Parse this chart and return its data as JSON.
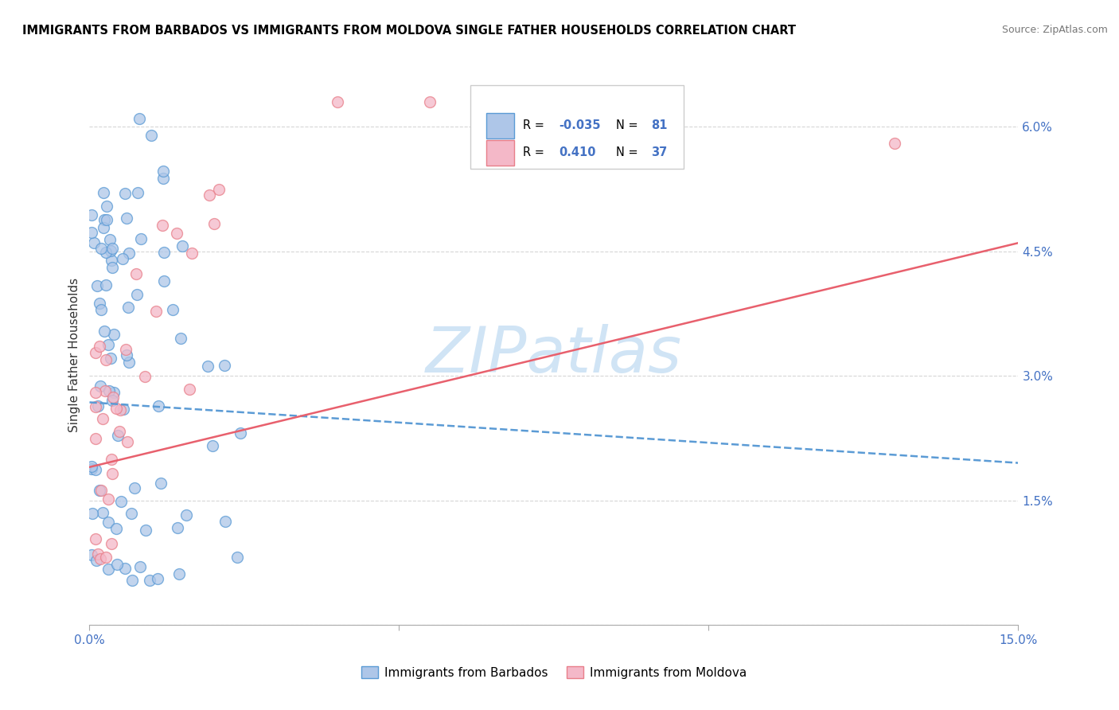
{
  "title": "IMMIGRANTS FROM BARBADOS VS IMMIGRANTS FROM MOLDOVA SINGLE FATHER HOUSEHOLDS CORRELATION CHART",
  "source": "Source: ZipAtlas.com",
  "ylabel": "Single Father Households",
  "x_min": 0.0,
  "x_max": 0.15,
  "y_min": 0.0,
  "y_max": 0.065,
  "barbados_color": "#aec6e8",
  "moldova_color": "#f4b8c8",
  "barbados_edge_color": "#5b9bd5",
  "moldova_edge_color": "#e87f8a",
  "barbados_line_color": "#5b9bd5",
  "moldova_line_color": "#e8606d",
  "watermark_color": "#d0e4f5",
  "legend_r_barbados": "-0.035",
  "legend_n_barbados": "81",
  "legend_r_moldova": "0.410",
  "legend_n_moldova": "37",
  "watermark": "ZIPatlas",
  "b_line_x0": 0.0,
  "b_line_y0": 0.0268,
  "b_line_x1": 0.15,
  "b_line_y1": 0.0195,
  "m_line_x0": 0.0,
  "m_line_y0": 0.019,
  "m_line_x1": 0.15,
  "m_line_y1": 0.046
}
